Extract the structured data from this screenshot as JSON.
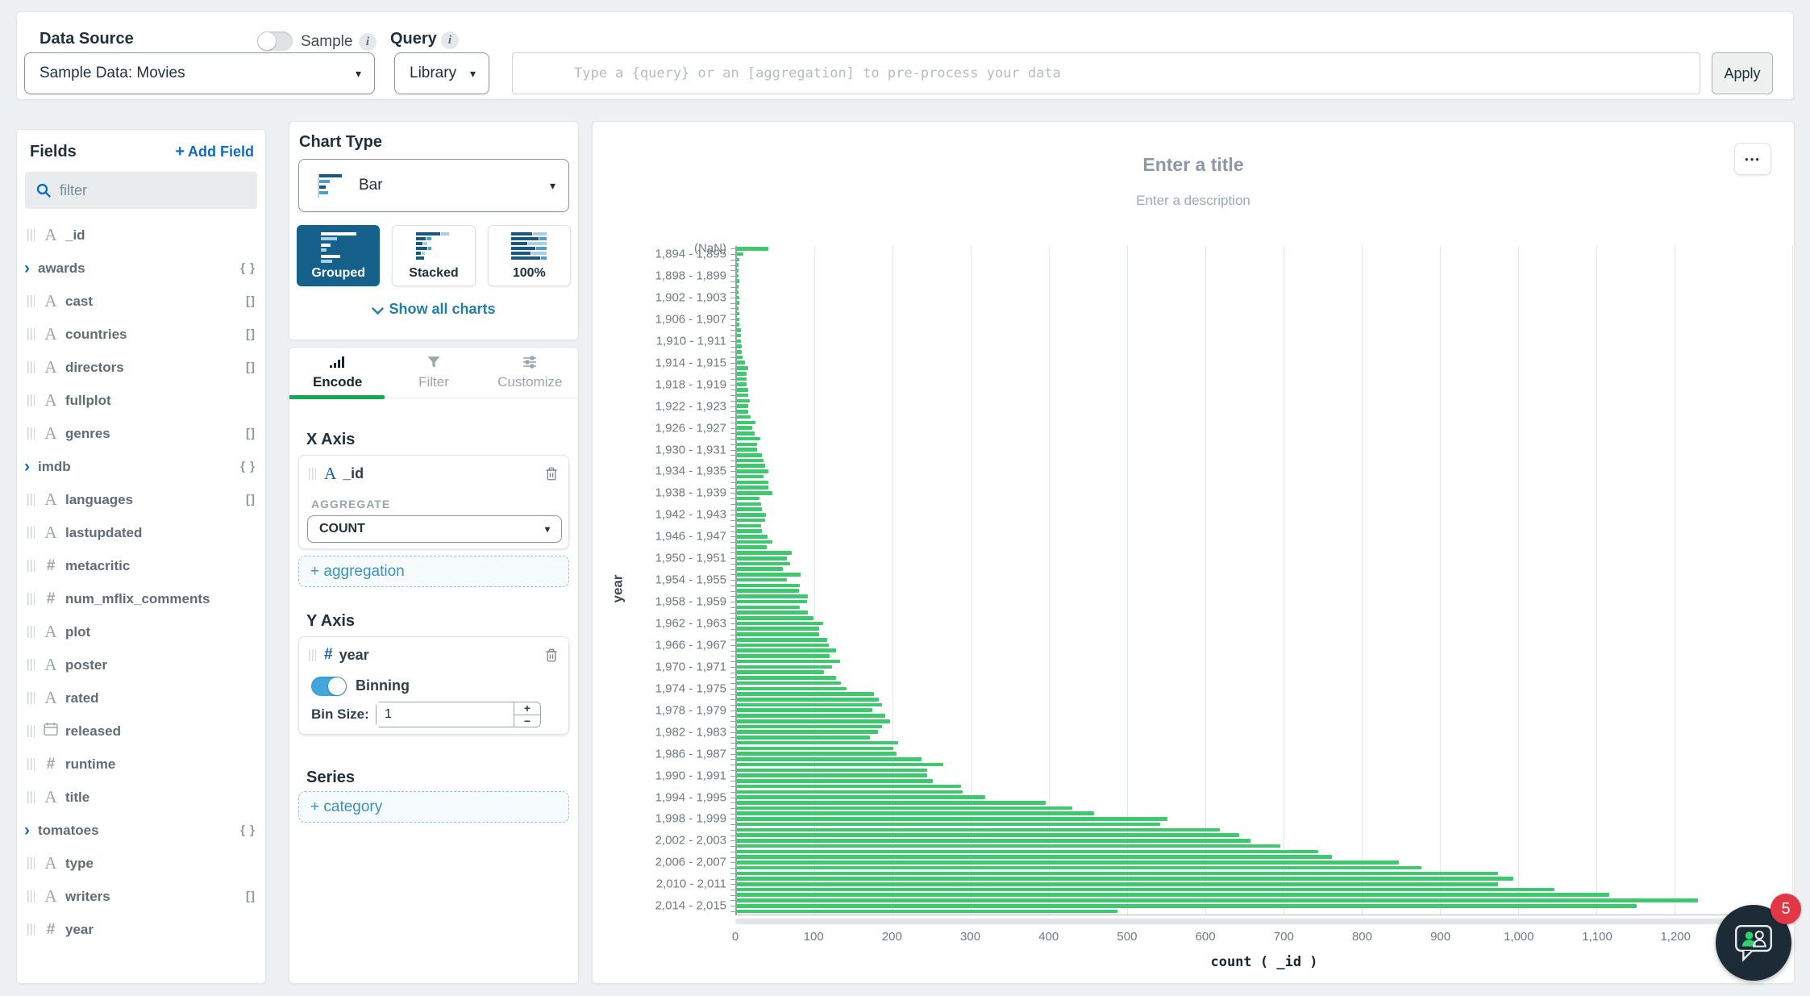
{
  "colors": {
    "bar_green": "#3ec96e",
    "tab_active_green": "#13aa52",
    "selected_subtype_blue": "#15618c",
    "toggle_blue": "#41a7da",
    "link_blue": "#0d6cc8",
    "teal_link": "#217ea6",
    "badge_red": "#e23744",
    "chat_navy": "#1c2b36",
    "text_dark": "#21313c"
  },
  "topbar": {
    "data_source_label": "Data Source",
    "data_source_value": "Sample Data: Movies",
    "sample_toggle_label": "Sample",
    "sample_info": "i",
    "query_label": "Query",
    "query_info": "i",
    "library_label": "Library",
    "query_placeholder": "Type a {query} or an [aggregation] to pre-process your data",
    "apply_label": "Apply"
  },
  "fields_panel": {
    "title": "Fields",
    "add_field_label": "Add Field",
    "add_icon": "+",
    "filter_placeholder": "filter",
    "object_badge": "{ }",
    "array_badge": "[]",
    "expand_chevron": "›",
    "fields": [
      {
        "name": "_id",
        "type": "string"
      },
      {
        "name": "awards",
        "type": "object"
      },
      {
        "name": "cast",
        "type": "string",
        "array": true
      },
      {
        "name": "countries",
        "type": "string",
        "array": true
      },
      {
        "name": "directors",
        "type": "string",
        "array": true
      },
      {
        "name": "fullplot",
        "type": "string"
      },
      {
        "name": "genres",
        "type": "string",
        "array": true
      },
      {
        "name": "imdb",
        "type": "object"
      },
      {
        "name": "languages",
        "type": "string",
        "array": true
      },
      {
        "name": "lastupdated",
        "type": "string"
      },
      {
        "name": "metacritic",
        "type": "number"
      },
      {
        "name": "num_mflix_comments",
        "type": "number"
      },
      {
        "name": "plot",
        "type": "string"
      },
      {
        "name": "poster",
        "type": "string"
      },
      {
        "name": "rated",
        "type": "string"
      },
      {
        "name": "released",
        "type": "date"
      },
      {
        "name": "runtime",
        "type": "number"
      },
      {
        "name": "title",
        "type": "string"
      },
      {
        "name": "tomatoes",
        "type": "object"
      },
      {
        "name": "type",
        "type": "string"
      },
      {
        "name": "writers",
        "type": "string",
        "array": true
      },
      {
        "name": "year",
        "type": "number"
      }
    ]
  },
  "chart_type_panel": {
    "title": "Chart Type",
    "selected_chart": "Bar",
    "subtypes": [
      {
        "label": "Grouped",
        "selected": true
      },
      {
        "label": "Stacked",
        "selected": false
      },
      {
        "label": "100%",
        "selected": false
      }
    ],
    "show_all_label": "Show all charts"
  },
  "encode_panel": {
    "tabs": [
      {
        "label": "Encode",
        "active": true
      },
      {
        "label": "Filter",
        "active": false
      },
      {
        "label": "Customize",
        "active": false
      }
    ],
    "x_axis": {
      "heading": "X Axis",
      "field": "_id",
      "field_type": "string",
      "aggregate_label": "AGGREGATE",
      "aggregate_value": "COUNT",
      "add_button": "+ aggregation"
    },
    "y_axis": {
      "heading": "Y Axis",
      "field": "year",
      "field_type": "number",
      "binning_label": "Binning",
      "binning_on": true,
      "bin_size_label": "Bin Size:",
      "bin_size_value": "1"
    },
    "series": {
      "heading": "Series",
      "add_button": "+ category"
    }
  },
  "chart_header": {
    "title_placeholder": "Enter a title",
    "description_placeholder": "Enter a description",
    "menu": "•••"
  },
  "chart_data": {
    "type": "bar",
    "orientation": "horizontal",
    "xlabel": "count ( _id )",
    "ylabel": "year",
    "xlim": [
      0,
      1350
    ],
    "grid": true,
    "xtick_values": [
      0,
      100,
      200,
      300,
      400,
      500,
      600,
      700,
      800,
      900,
      1000,
      1100,
      1200
    ],
    "xtick_labels": [
      "0",
      "100",
      "200",
      "300",
      "400",
      "500",
      "600",
      "700",
      "800",
      "900",
      "1,000",
      "1,100",
      "1,200"
    ],
    "nan_label": "(NaN)",
    "nan_value": 40,
    "bin_start_year": 1894,
    "bin_end_year": 2015,
    "bin_size": 1,
    "label_every": 4,
    "ytick_labels": [
      "(NaN)",
      "1,894 - 1,895",
      "1,898 - 1,899",
      "1,902 - 1,903",
      "1,906 - 1,907",
      "1,910 - 1,911",
      "1,914 - 1,915",
      "1,918 - 1,919",
      "1,922 - 1,923",
      "1,926 - 1,927",
      "1,930 - 1,931",
      "1,934 - 1,935",
      "1,938 - 1,939",
      "1,942 - 1,943",
      "1,946 - 1,947",
      "1,950 - 1,951",
      "1,954 - 1,955",
      "1,958 - 1,959",
      "1,962 - 1,963",
      "1,966 - 1,967",
      "1,970 - 1,971",
      "1,974 - 1,975",
      "1,978 - 1,979",
      "1,982 - 1,983",
      "1,986 - 1,987",
      "1,990 - 1,991",
      "1,994 - 1,995",
      "1,998 - 1,999",
      "2,002 - 2,003",
      "2,006 - 2,007",
      "2,010 - 2,011",
      "2,014 - 2,015"
    ],
    "values": [
      8,
      3,
      2,
      2,
      2,
      3,
      2,
      2,
      3,
      3,
      2,
      3,
      3,
      3,
      5,
      5,
      5,
      6,
      6,
      7,
      10,
      14,
      12,
      12,
      12,
      14,
      14,
      16,
      14,
      14,
      18,
      24,
      20,
      23,
      30,
      26,
      26,
      32,
      34,
      36,
      40,
      34,
      40,
      40,
      45,
      29,
      31,
      32,
      37,
      36,
      31,
      32,
      39,
      45,
      38,
      70,
      64,
      68,
      59,
      81,
      64,
      80,
      79,
      91,
      90,
      80,
      91,
      98,
      110,
      105,
      105,
      115,
      117,
      127,
      118,
      132,
      122,
      111,
      127,
      133,
      140,
      175,
      181,
      186,
      173,
      190,
      196,
      185,
      180,
      170,
      206,
      200,
      204,
      236,
      264,
      243,
      243,
      250,
      287,
      289,
      317,
      395,
      429,
      457,
      550,
      541,
      617,
      642,
      656,
      695,
      743,
      761,
      846,
      875,
      973,
      992,
      973,
      1045,
      1115,
      1228,
      1150,
      486
    ]
  },
  "chat_widget": {
    "badge_count": "5"
  }
}
